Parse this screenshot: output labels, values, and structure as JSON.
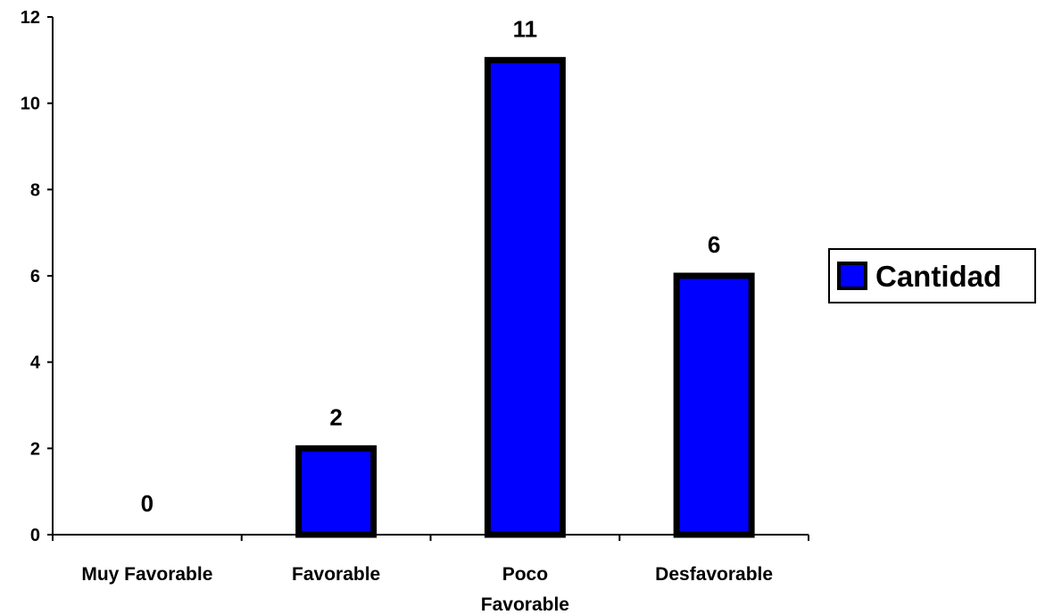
{
  "chart_data": {
    "type": "bar",
    "categories": [
      [
        "Muy Favorable"
      ],
      [
        "Favorable"
      ],
      [
        "Poco",
        "Favorable"
      ],
      [
        "Desfavorable"
      ]
    ],
    "series": [
      {
        "name": "Cantidad",
        "values": [
          0,
          2,
          11,
          6
        ],
        "color": "#0000FF"
      }
    ],
    "data_labels": [
      "0",
      "2",
      "11",
      "6"
    ],
    "ylim": [
      0,
      12
    ],
    "yticks": [
      0,
      2,
      4,
      6,
      8,
      10,
      12
    ],
    "grid": false,
    "legend_position": "right",
    "bar_outline_color": "#000000",
    "title": "",
    "xlabel": "",
    "ylabel": ""
  }
}
